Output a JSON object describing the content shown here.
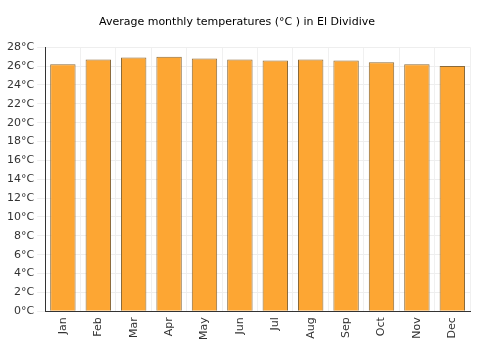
{
  "chart_data": {
    "type": "bar",
    "title": "Average monthly temperatures (°C ) in El Dividive",
    "categories": [
      "Jan",
      "Feb",
      "Mar",
      "Apr",
      "May",
      "Jun",
      "Jul",
      "Aug",
      "Sep",
      "Oct",
      "Nov",
      "Dec"
    ],
    "values": [
      26.2,
      26.7,
      26.9,
      27.0,
      26.8,
      26.7,
      26.6,
      26.7,
      26.6,
      26.4,
      26.2,
      26.0
    ],
    "color": "#fda633",
    "ylim": [
      0,
      28
    ],
    "yticks": [
      {
        "value": 0,
        "label": "0°C"
      },
      {
        "value": 2,
        "label": "2°C"
      },
      {
        "value": 4,
        "label": "4°C"
      },
      {
        "value": 6,
        "label": "6°C"
      },
      {
        "value": 8,
        "label": "8°C"
      },
      {
        "value": 10,
        "label": "10°C"
      },
      {
        "value": 12,
        "label": "12°C"
      },
      {
        "value": 14,
        "label": "14°C"
      },
      {
        "value": 16,
        "label": "16°C"
      },
      {
        "value": 18,
        "label": "18°C"
      },
      {
        "value": 20,
        "label": "20°C"
      },
      {
        "value": 22,
        "label": "22°C"
      },
      {
        "value": 24,
        "label": "24°C"
      },
      {
        "value": 26,
        "label": "26°C"
      },
      {
        "value": 28,
        "label": "28°C"
      }
    ],
    "grid": true
  }
}
